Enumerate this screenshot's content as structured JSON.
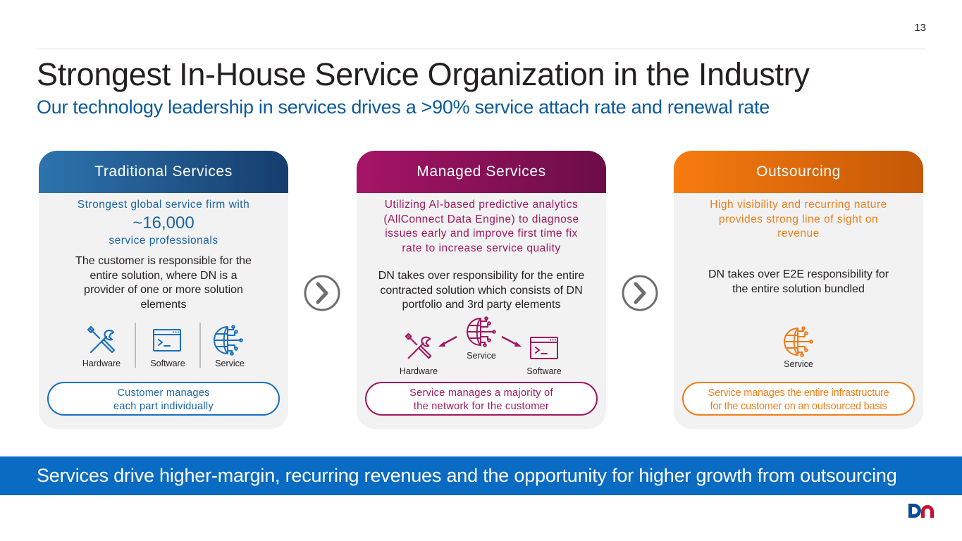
{
  "page_number": "13",
  "title": "Strongest In-House Service Organization in the Industry",
  "subtitle": "Our technology leadership in services drives a >90% service attach rate and renewal rate",
  "cards": [
    {
      "header": "Traditional Services",
      "lead_pre": "Strongest global service firm with",
      "lead_number": "~16,000",
      "lead_post": "service professionals",
      "body": "The customer is responsible for the entire solution, where DN is a provider of one or more solution elements",
      "icons": [
        "Hardware",
        "Software",
        "Service"
      ],
      "pill": [
        "Customer manages",
        "each part individually"
      ],
      "color": "#1b64a8"
    },
    {
      "header": "Managed Services",
      "lead": [
        "Utilizing AI-based predictive analytics",
        "(AllConnect Data Engine) to diagnose",
        "issues early and improve first time fix",
        "rate to increase service quality"
      ],
      "body": "DN takes over responsibility for the entire contracted solution which consists of DN portfolio and 3rd party elements",
      "icons": [
        "Service",
        "Hardware",
        "Software"
      ],
      "pill": [
        "Service manages a majority of",
        "the network for the customer"
      ],
      "color": "#a0185f"
    },
    {
      "header": "Outsourcing",
      "lead": [
        "High visibility and recurring nature",
        "provides strong line of sight on",
        "revenue"
      ],
      "body": "DN takes over E2E responsibility for the entire solution bundled",
      "icons": [
        "Service"
      ],
      "pill": [
        "Service manages the entire infrastructure",
        "for the customer on an outsourced basis"
      ],
      "color": "#ef7d1a"
    }
  ],
  "bottom_banner": "Services drive higher-margin, recurring revenues and the opportunity for higher growth from outsourcing",
  "logo": "DN",
  "icon_names": [
    "wrench-screwdriver-icon",
    "terminal-window-icon",
    "globe-network-icon",
    "chevron-right-circle-icon",
    "dn-logo"
  ]
}
